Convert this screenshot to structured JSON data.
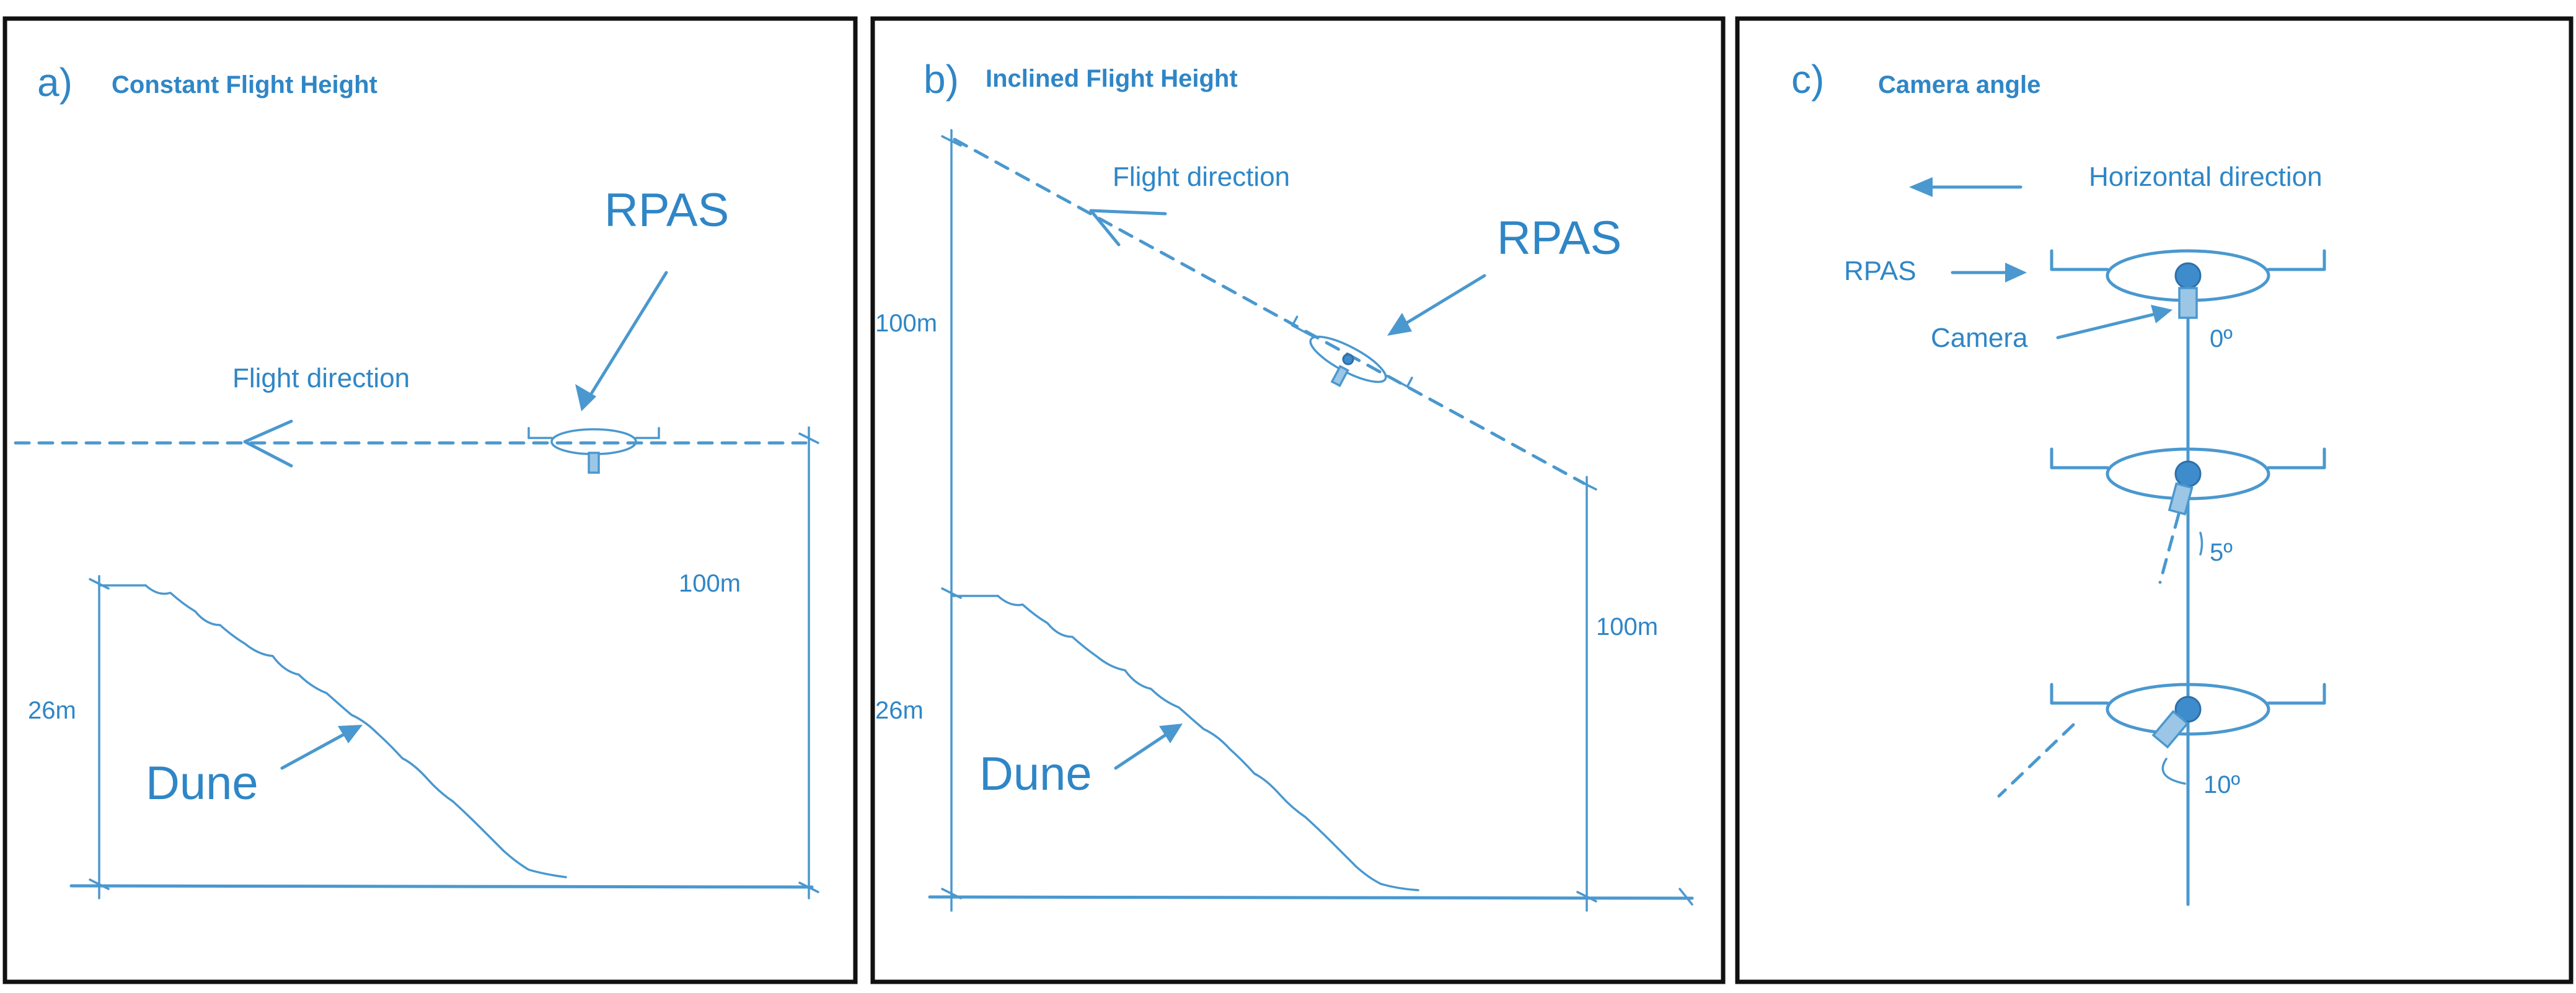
{
  "colors": {
    "ink": "#4a98cf",
    "text": "#2f86c6",
    "frame": "#111111"
  },
  "panels": [
    {
      "letter": "a)",
      "title": "Constant  Flight Height",
      "labels": {
        "rpas": "RPAS",
        "flight_direction": "Flight direction",
        "height_total": "100m",
        "height_dune": "26m",
        "dune": "Dune"
      }
    },
    {
      "letter": "b)",
      "title": "Inclined Flight Height",
      "labels": {
        "rpas": "RPAS",
        "flight_direction": "Flight direction",
        "height_left": "100m",
        "height_right": "100m",
        "height_dune": "26m",
        "dune": "Dune"
      }
    },
    {
      "letter": "c)",
      "title": "Camera angle",
      "labels": {
        "horizontal_direction": "Horizontal direction",
        "rpas": "RPAS",
        "camera": "Camera",
        "angle_0": "0º",
        "angle_5": "5º",
        "angle_10": "10º"
      }
    }
  ]
}
